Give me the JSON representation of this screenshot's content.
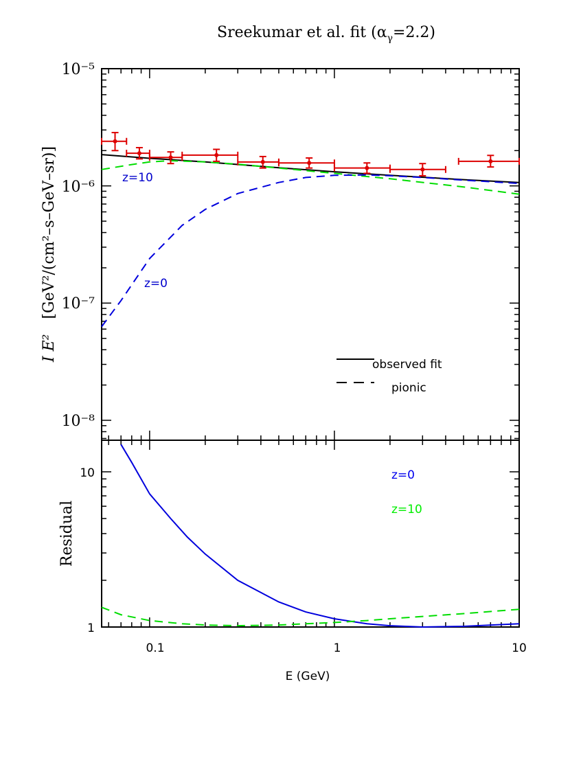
{
  "chart_data": [
    {
      "type": "line",
      "title": "Sreekumar et al. fit (αγ=2.2)",
      "title_main": "Sreekumar et al. fit (α",
      "title_sub": "γ",
      "title_tail": "=2.2)",
      "ylabel_var": "I E²",
      "ylabel_units": "[GeV²/(cm²–s–GeV–sr)]",
      "xscale": "log",
      "yscale": "log",
      "xlim": [
        0.055,
        10
      ],
      "ylim": [
        7e-09,
        1e-05
      ],
      "ytick_labels": [
        "10⁻⁵",
        "10⁻⁶",
        "10⁻⁷",
        "10⁻⁸"
      ],
      "legend": {
        "placement": "lower-right",
        "entries": [
          "observed fit",
          "pionic"
        ]
      },
      "annotations": [
        {
          "text": "z=10",
          "x": 0.077,
          "y": 1.1e-06,
          "color": "#0000cc"
        },
        {
          "text": "z=0",
          "x": 0.115,
          "y": 1.7e-07,
          "color": "#0000cc"
        }
      ],
      "series": [
        {
          "name": "observed fit",
          "style": "solid",
          "color": "#000000",
          "x": [
            0.055,
            0.1,
            0.2,
            0.5,
            1,
            2,
            5,
            10
          ],
          "y": [
            1.85e-06,
            1.72e-06,
            1.6e-06,
            1.43e-06,
            1.32e-06,
            1.23e-06,
            1.13e-06,
            1.07e-06
          ]
        },
        {
          "name": "pionic z=10",
          "style": "dashed",
          "color": "#00dd00",
          "x": [
            0.055,
            0.08,
            0.1,
            0.13,
            0.2,
            0.3,
            0.5,
            1,
            2,
            5,
            10
          ],
          "y": [
            1.38e-06,
            1.52e-06,
            1.6e-06,
            1.64e-06,
            1.6e-06,
            1.53e-06,
            1.42e-06,
            1.28e-06,
            1.15e-06,
            9.8e-07,
            8.5e-07
          ]
        },
        {
          "name": "pionic z=0",
          "style": "dashed",
          "color": "#0000dd",
          "x": [
            0.055,
            0.07,
            0.1,
            0.15,
            0.2,
            0.3,
            0.5,
            0.7,
            1,
            1.5,
            2,
            3,
            5,
            10
          ],
          "y": [
            6.3e-08,
            1.05e-07,
            2.4e-07,
            4.6e-07,
            6.3e-07,
            8.6e-07,
            1.07e-06,
            1.18e-06,
            1.23e-06,
            1.24e-06,
            1.22e-06,
            1.18e-06,
            1.12e-06,
            1.05e-06
          ]
        },
        {
          "name": "data",
          "style": "points",
          "color": "#dd0000",
          "points": [
            {
              "x": 0.065,
              "xlo": 0.055,
              "xhi": 0.075,
              "y": 2.4e-06,
              "ylo": 2e-06,
              "yhi": 2.85e-06
            },
            {
              "x": 0.088,
              "xlo": 0.075,
              "xhi": 0.1,
              "y": 1.9e-06,
              "ylo": 1.7e-06,
              "yhi": 2.12e-06
            },
            {
              "x": 0.13,
              "xlo": 0.1,
              "xhi": 0.15,
              "y": 1.75e-06,
              "ylo": 1.55e-06,
              "yhi": 1.95e-06
            },
            {
              "x": 0.23,
              "xlo": 0.15,
              "xhi": 0.3,
              "y": 1.83e-06,
              "ylo": 1.62e-06,
              "yhi": 2.05e-06
            },
            {
              "x": 0.41,
              "xlo": 0.3,
              "xhi": 0.5,
              "y": 1.6e-06,
              "ylo": 1.42e-06,
              "yhi": 1.78e-06
            },
            {
              "x": 0.73,
              "xlo": 0.5,
              "xhi": 1.0,
              "y": 1.57e-06,
              "ylo": 1.42e-06,
              "yhi": 1.73e-06
            },
            {
              "x": 1.5,
              "xlo": 1.0,
              "xhi": 2.0,
              "y": 1.42e-06,
              "ylo": 1.28e-06,
              "yhi": 1.57e-06
            },
            {
              "x": 3.0,
              "xlo": 2.0,
              "xhi": 4.0,
              "y": 1.38e-06,
              "ylo": 1.22e-06,
              "yhi": 1.55e-06
            },
            {
              "x": 7.0,
              "xlo": 4.7,
              "xhi": 10.0,
              "y": 1.62e-06,
              "ylo": 1.45e-06,
              "yhi": 1.82e-06
            }
          ]
        }
      ]
    },
    {
      "type": "line",
      "xlabel": "E (GeV)",
      "ylabel": "Residual",
      "xscale": "log",
      "yscale": "log",
      "xlim": [
        0.055,
        10
      ],
      "ylim": [
        1,
        15
      ],
      "xtick_labels": [
        "0.1",
        "1",
        "10"
      ],
      "ytick_labels": [
        "10",
        "1"
      ],
      "legend": {
        "placement": "upper-right",
        "entries": [
          {
            "text": "z=0",
            "color": "#0000ee"
          },
          {
            "text": "z=10",
            "color": "#00ee00"
          }
        ]
      },
      "series": [
        {
          "name": "z=0",
          "style": "solid",
          "color": "#0000dd",
          "x": [
            0.07,
            0.08,
            0.1,
            0.13,
            0.16,
            0.2,
            0.3,
            0.5,
            0.7,
            1.0,
            1.5,
            2.0,
            3.0,
            5.0,
            10.0
          ],
          "y": [
            15,
            11.5,
            7.2,
            5.0,
            3.8,
            2.95,
            2.0,
            1.45,
            1.25,
            1.13,
            1.05,
            1.02,
            1.0,
            1.01,
            1.05
          ]
        },
        {
          "name": "z=10",
          "style": "dashed",
          "color": "#00dd00",
          "x": [
            0.055,
            0.07,
            0.1,
            0.15,
            0.2,
            0.3,
            0.5,
            0.7,
            1.0,
            1.5,
            2.0,
            3.0,
            5.0,
            10.0
          ],
          "y": [
            1.34,
            1.2,
            1.1,
            1.05,
            1.03,
            1.02,
            1.03,
            1.05,
            1.07,
            1.1,
            1.13,
            1.17,
            1.22,
            1.3
          ]
        }
      ]
    }
  ]
}
